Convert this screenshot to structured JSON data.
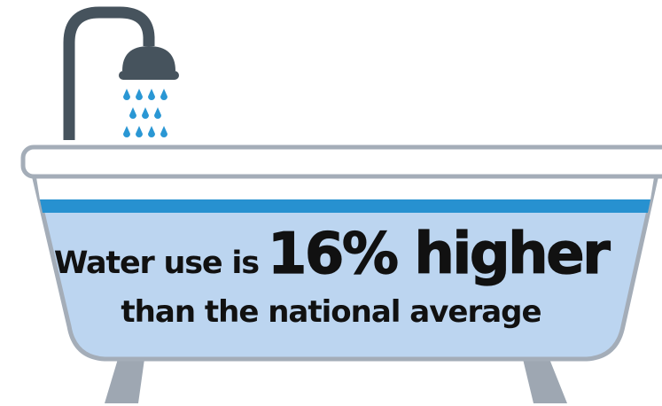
{
  "headline": {
    "lead": "Water use is",
    "highlight": "16% higher",
    "subline": "than the national average"
  },
  "colors": {
    "pipe": "#46535d",
    "water_drop": "#2a97d4",
    "tub_outline": "#a4adb8",
    "tub_fill": "#bcd5f0",
    "water_line": "#2791d0",
    "feet": "#9ea7b2",
    "text": "#111111"
  },
  "icons": [
    "shower-head-icon",
    "water-drop-icon",
    "bathtub-icon"
  ]
}
